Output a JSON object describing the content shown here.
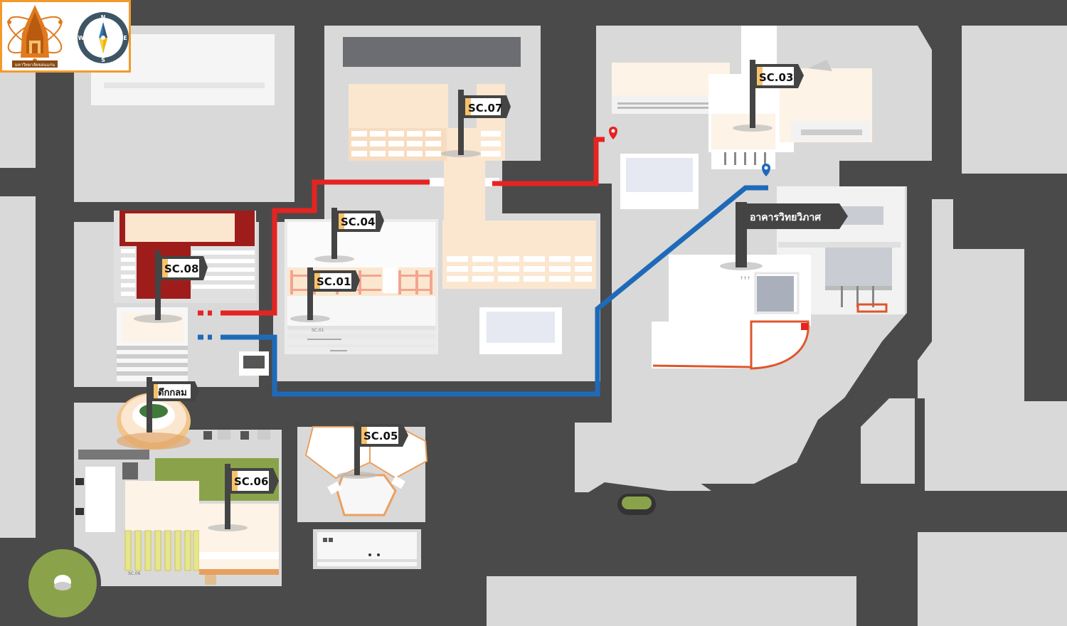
{
  "flags": {
    "sc01": "SC.01",
    "sc03": "SC.03",
    "sc04": "SC.04",
    "sc05": "SC.05",
    "sc06": "SC.06",
    "sc07": "SC.07",
    "sc08": "SC.08",
    "round_building": "ตึกกลม",
    "wittayawiphat": "อาคารวิทยวิภาศ"
  },
  "logo": {
    "university_name": "มหาวิทยาลัยขอนแก่น",
    "icon": "khon-kaen-university-seal"
  },
  "compass": {
    "north": "N",
    "south": "S",
    "east": "E",
    "west": "W"
  },
  "routes": {
    "red": {
      "color": "#e52421"
    },
    "blue": {
      "color": "#1f6ab8"
    }
  },
  "markers": {
    "red_pin_color": "#e52421",
    "blue_pin_color": "#1f6ab8"
  },
  "sign_text": {
    "sc01_sign": "SC.01",
    "sc06_sign": "SC.06"
  },
  "colors": {
    "road": "#4a4a4a",
    "ground": "#d9d9d9",
    "building": "#f3f3f3",
    "accent": "#f39a2c",
    "flag_tab": "#f7c26b"
  }
}
